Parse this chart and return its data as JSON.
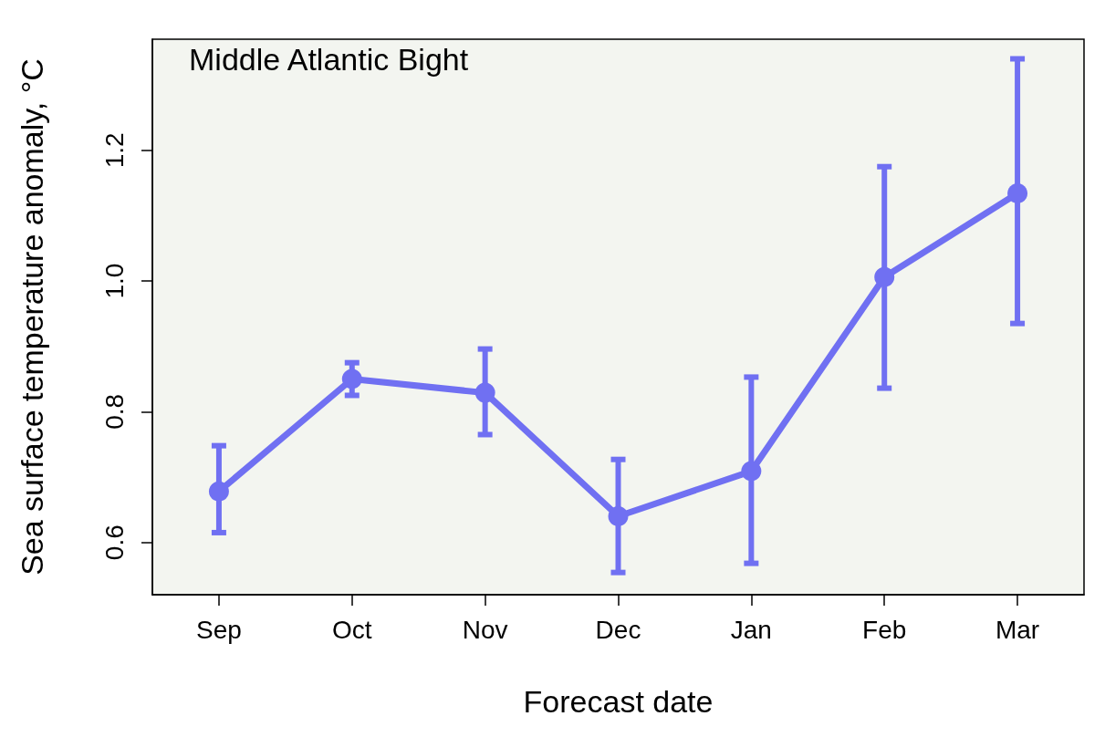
{
  "chart_data": {
    "type": "line",
    "xlabel": "Forecast date",
    "ylabel": "Sea surface temperature anomaly, °C",
    "annotations": [
      "Middle Atlantic Bight"
    ],
    "categories": [
      "Sep",
      "Oct",
      "Nov",
      "Dec",
      "Jan",
      "Feb",
      "Mar"
    ],
    "series": [
      {
        "color": "#7070f2",
        "values": [
          0.678,
          0.85,
          0.829,
          0.64,
          0.709,
          1.006,
          1.134
        ],
        "errors": [
          [
            0.615,
            0.748
          ],
          [
            0.825,
            0.875
          ],
          [
            0.765,
            0.896
          ],
          [
            0.554,
            0.727
          ],
          [
            0.568,
            0.853
          ],
          [
            0.836,
            1.175
          ],
          [
            0.935,
            1.34
          ]
        ]
      }
    ],
    "ylim": [
      0.52,
      1.37
    ],
    "yticks": [
      0.6,
      0.8,
      {
        "value": 1,
        "label": "1.0"
      },
      1.2
    ],
    "grid": false,
    "marker": "circle",
    "line_style": "solid"
  }
}
